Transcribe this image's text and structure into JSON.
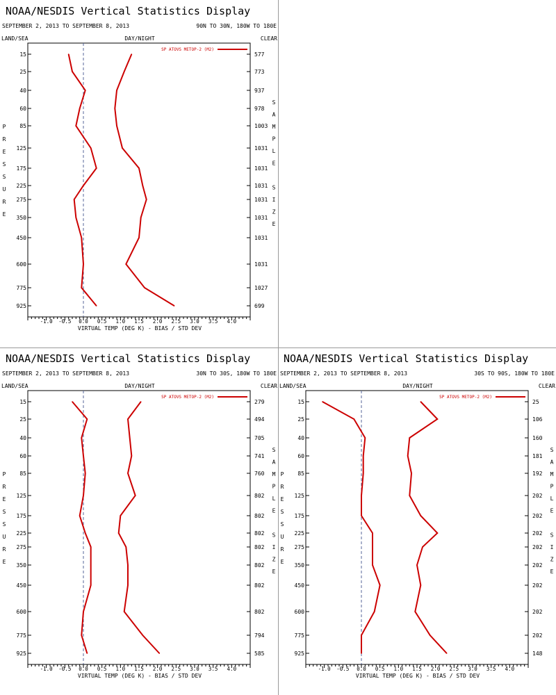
{
  "colors": {
    "line": "#cc0000",
    "axis": "#000000",
    "zero": "#556699"
  },
  "common": {
    "title": "NOAA/NESDIS Vertical Statistics Display",
    "date_range": "SEPTEMBER 2, 2013 TO SEPTEMBER 8, 2013",
    "land_sea": "LAND/SEA",
    "day_night": "DAY/NIGHT",
    "clear": "CLEAR",
    "xlabel": "VIRTUAL TEMP (DEG K) - BIAS / STD DEV",
    "ylabel_letters": [
      "P",
      "R",
      "E",
      "S",
      "S",
      "U",
      "R",
      "E"
    ],
    "y2label_letters": [
      "S",
      "A",
      "M",
      "P",
      "L",
      "E",
      "",
      "S",
      "I",
      "Z",
      "E"
    ],
    "legend": "SP ATOVS METOP-2 (M2)"
  },
  "chart_data": [
    {
      "type": "line",
      "region": "90N TO 30N, 180W TO 180E",
      "xlim": [
        -1.5,
        4.5
      ],
      "x_ticks": [
        "-1.0",
        "-0.5",
        "0.0",
        "0.5",
        "1.0",
        "1.5",
        "2.0",
        "2.5",
        "3.0",
        "3.5",
        "4.0"
      ],
      "pressure_levels": [
        15,
        25,
        40,
        60,
        85,
        125,
        175,
        225,
        275,
        350,
        450,
        600,
        775,
        925
      ],
      "sample_size": [
        577,
        773,
        937,
        978,
        1003,
        1031,
        1031,
        1031,
        1031,
        1031,
        1031,
        1031,
        1027,
        699
      ],
      "series": [
        {
          "values": [
            -0.4,
            -0.3,
            0.05,
            -0.1,
            -0.2,
            0.2,
            0.35,
            0.0,
            -0.25,
            -0.2,
            -0.05,
            0.0,
            -0.05,
            0.35
          ]
        },
        {
          "values": [
            1.3,
            1.1,
            0.9,
            0.85,
            0.9,
            1.05,
            1.5,
            1.6,
            1.7,
            1.55,
            1.5,
            1.15,
            1.65,
            2.45
          ]
        }
      ]
    },
    {
      "type": "line",
      "region": "30N TO 30S, 180W TO 180E",
      "xlim": [
        -1.5,
        4.5
      ],
      "x_ticks": [
        "-1.0",
        "-0.5",
        "0.0",
        "0.5",
        "1.0",
        "1.5",
        "2.0",
        "2.5",
        "3.0",
        "3.5",
        "4.0"
      ],
      "pressure_levels": [
        15,
        25,
        40,
        60,
        85,
        125,
        175,
        225,
        275,
        350,
        450,
        600,
        775,
        925
      ],
      "sample_size": [
        279,
        494,
        705,
        741,
        760,
        802,
        802,
        802,
        802,
        802,
        802,
        802,
        794,
        585
      ],
      "series": [
        {
          "values": [
            -0.3,
            0.1,
            -0.05,
            0.0,
            0.05,
            0.0,
            -0.1,
            0.05,
            0.2,
            0.2,
            0.2,
            0.0,
            -0.05,
            0.1
          ]
        },
        {
          "values": [
            1.55,
            1.2,
            1.25,
            1.3,
            1.2,
            1.4,
            1.0,
            0.95,
            1.15,
            1.2,
            1.2,
            1.1,
            1.6,
            2.05
          ]
        }
      ]
    },
    {
      "type": "line",
      "region": "30S TO 90S, 180W TO 180E",
      "xlim": [
        -1.5,
        4.5
      ],
      "x_ticks": [
        "-1.0",
        "-0.5",
        "0.0",
        "0.5",
        "1.0",
        "1.5",
        "2.0",
        "2.5",
        "3.0",
        "3.5",
        "4.0"
      ],
      "pressure_levels": [
        15,
        25,
        40,
        60,
        85,
        125,
        175,
        225,
        275,
        350,
        450,
        600,
        775,
        925
      ],
      "sample_size": [
        25,
        106,
        160,
        181,
        192,
        202,
        202,
        202,
        202,
        202,
        202,
        202,
        202,
        148
      ],
      "series": [
        {
          "values": [
            -1.05,
            -0.2,
            0.1,
            0.05,
            0.05,
            0.0,
            0.0,
            0.3,
            0.3,
            0.3,
            0.5,
            0.35,
            0.0,
            0.0
          ]
        },
        {
          "values": [
            1.6,
            2.05,
            1.3,
            1.25,
            1.35,
            1.3,
            1.6,
            2.05,
            1.65,
            1.5,
            1.6,
            1.45,
            1.85,
            2.3
          ]
        }
      ]
    }
  ]
}
